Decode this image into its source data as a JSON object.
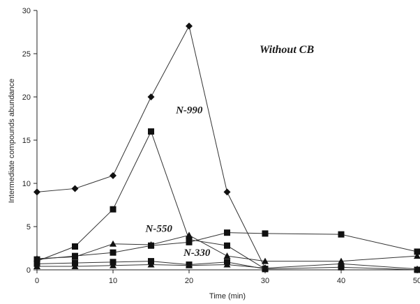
{
  "chart_data": {
    "type": "line",
    "title": "",
    "xlabel": "Time (min)",
    "ylabel": "Intermediate compounds abundance",
    "xlim": [
      0,
      50
    ],
    "ylim": [
      0,
      30
    ],
    "x_ticks": [
      0,
      10,
      20,
      30,
      40,
      50
    ],
    "y_ticks": [
      0,
      5,
      10,
      15,
      20,
      25,
      30
    ],
    "grid": false,
    "series": [
      {
        "name": "Without CB",
        "marker": "diamond",
        "x": [
          0,
          5,
          10,
          15,
          20,
          25,
          30
        ],
        "y": [
          9.0,
          9.4,
          10.9,
          20.0,
          28.2,
          9.0,
          0.2
        ]
      },
      {
        "name": "N-990",
        "marker": "square",
        "x": [
          0,
          5,
          10,
          15,
          20,
          25,
          30
        ],
        "y": [
          1.0,
          2.7,
          7.0,
          16.0,
          3.5,
          2.8,
          0.1
        ]
      },
      {
        "name": "N-550",
        "marker": "triangle",
        "x": [
          0,
          5,
          10,
          15,
          20,
          25,
          30,
          40,
          50
        ],
        "y": [
          1.3,
          1.5,
          3.0,
          2.9,
          4.0,
          1.6,
          1.0,
          1.0,
          1.6
        ]
      },
      {
        "name": "N-330",
        "marker": "square",
        "x": [
          0,
          5,
          10,
          15,
          20,
          25,
          30,
          40,
          50
        ],
        "y": [
          0.7,
          0.8,
          0.9,
          1.0,
          0.6,
          0.9,
          0.1,
          0.3,
          0.0
        ]
      },
      {
        "name": "",
        "marker": "square",
        "x": [
          0,
          5,
          10,
          15,
          20,
          25,
          30,
          40,
          50
        ],
        "y": [
          1.2,
          1.6,
          2.0,
          2.8,
          3.2,
          4.3,
          4.2,
          4.1,
          2.1
        ]
      },
      {
        "name": "",
        "marker": "triangle",
        "x": [
          0,
          5,
          10,
          15,
          20,
          25,
          30,
          40,
          50
        ],
        "y": [
          0.4,
          0.4,
          0.5,
          0.6,
          0.5,
          0.6,
          0.2,
          0.7,
          0.1
        ]
      }
    ],
    "annotations": [
      {
        "text": "Without CB",
        "x": 30,
        "y": 25.5
      },
      {
        "text": "N-990",
        "x": 19,
        "y": 18.5
      },
      {
        "text": "N-550",
        "x": 15,
        "y": 4.8
      },
      {
        "text": "N-330",
        "x": 20,
        "y": 2.0
      }
    ]
  }
}
